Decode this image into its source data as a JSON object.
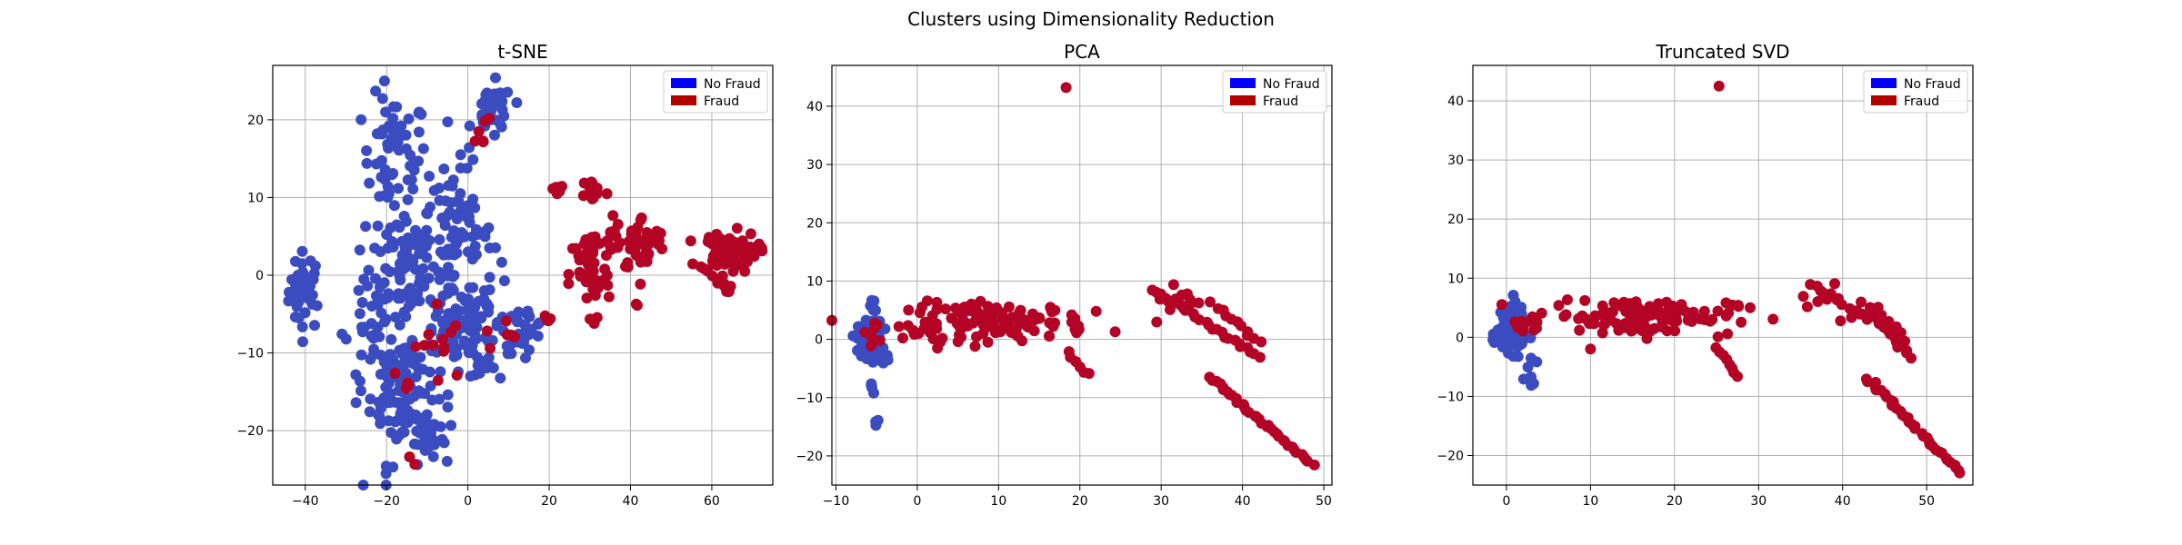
{
  "suptitle": "Clusters using Dimensionality Reduction",
  "colors": {
    "no_fraud": "#0000ff",
    "fraud": "#b00000",
    "no_fraud_point": "#3b4cc0",
    "fraud_point": "#b40426"
  },
  "chart_data": [
    {
      "type": "scatter",
      "title": "t-SNE",
      "xlim": [
        -48,
        75
      ],
      "ylim": [
        -27,
        27
      ],
      "xticks": [
        -40,
        -20,
        0,
        20,
        40,
        60
      ],
      "yticks": [
        -20,
        -10,
        0,
        10,
        20
      ],
      "grid": true,
      "legend": {
        "position": "top-right",
        "entries": [
          "No Fraud",
          "Fraud"
        ]
      },
      "series": [
        {
          "name": "No Fraud",
          "clusters": [
            {
              "cx": -40,
              "cy": -2,
              "sx": 2.0,
              "sy": 2.5,
              "n": 40
            },
            {
              "cx": -18,
              "cy": 15,
              "sx": 4.0,
              "sy": 4.0,
              "n": 60
            },
            {
              "cx": -16,
              "cy": 2,
              "sx": 4.0,
              "sy": 4.0,
              "n": 70
            },
            {
              "cx": -16,
              "cy": -14,
              "sx": 4.0,
              "sy": 5.0,
              "n": 110
            },
            {
              "cx": -3,
              "cy": 5,
              "sx": 4.5,
              "sy": 4.5,
              "n": 90
            },
            {
              "cx": -3,
              "cy": -8,
              "sx": 4.0,
              "sy": 3.0,
              "n": 50
            },
            {
              "cx": 6,
              "cy": 21,
              "sx": 2.5,
              "sy": 1.8,
              "n": 35
            },
            {
              "cx": 5,
              "cy": -6,
              "sx": 3.0,
              "sy": 4.0,
              "n": 40
            },
            {
              "cx": 14,
              "cy": -7,
              "sx": 2.5,
              "sy": 1.5,
              "n": 25
            },
            {
              "cx": -24,
              "cy": -8,
              "sx": 3.0,
              "sy": 5.0,
              "n": 35
            },
            {
              "cx": -10,
              "cy": -20,
              "sx": 2.5,
              "sy": 1.5,
              "n": 25
            }
          ]
        },
        {
          "name": "Fraud",
          "clusters": [
            {
              "cx": 30,
              "cy": 0,
              "sx": 2.5,
              "sy": 3.0,
              "n": 50
            },
            {
              "cx": 31,
              "cy": 11,
              "sx": 1.5,
              "sy": 0.8,
              "n": 15
            },
            {
              "cx": 43,
              "cy": 4,
              "sx": 3.0,
              "sy": 1.8,
              "n": 40
            },
            {
              "cx": 35,
              "cy": 5,
              "sx": 1.2,
              "sy": 1.5,
              "n": 10
            },
            {
              "cx": 64,
              "cy": 3,
              "sx": 3.5,
              "sy": 1.3,
              "n": 80
            },
            {
              "cx": 62,
              "cy": -1,
              "sx": 1.5,
              "sy": 0.6,
              "n": 10
            },
            {
              "cx": 22,
              "cy": 11,
              "sx": 0.6,
              "sy": 0.4,
              "n": 5
            },
            {
              "cx": 20,
              "cy": -6,
              "sx": 0.6,
              "sy": 0.4,
              "n": 4
            },
            {
              "cx": 3,
              "cy": 19,
              "sx": 1.0,
              "sy": 1.2,
              "n": 6
            },
            {
              "cx": -7,
              "cy": -9,
              "sx": 3.0,
              "sy": 3.0,
              "n": 12
            },
            {
              "cx": 8,
              "cy": -8,
              "sx": 2.0,
              "sy": 1.5,
              "n": 6
            },
            {
              "cx": -14,
              "cy": -24,
              "sx": 0.5,
              "sy": 0.5,
              "n": 2
            },
            {
              "cx": -16,
              "cy": -13,
              "sx": 1.0,
              "sy": 1.0,
              "n": 4
            },
            {
              "cx": 31,
              "cy": -6,
              "sx": 0.6,
              "sy": 0.6,
              "n": 2
            },
            {
              "cx": 42,
              "cy": -3.5,
              "sx": 0.5,
              "sy": 0.4,
              "n": 2
            }
          ]
        }
      ]
    },
    {
      "type": "scatter",
      "title": "PCA",
      "xlim": [
        -10.5,
        51
      ],
      "ylim": [
        -25,
        47
      ],
      "xticks": [
        -10,
        0,
        10,
        20,
        30,
        40,
        50
      ],
      "yticks": [
        -20,
        -10,
        0,
        10,
        20,
        30,
        40
      ],
      "grid": true,
      "legend": {
        "position": "top-right",
        "entries": [
          "No Fraud",
          "Fraud"
        ]
      },
      "series": [
        {
          "name": "No Fraud",
          "clusters": [
            {
              "cx": -5.8,
              "cy": 0,
              "sx": 0.7,
              "sy": 1.5,
              "n": 160
            },
            {
              "cx": -5.5,
              "cy": 6,
              "sx": 0.4,
              "sy": 1.2,
              "n": 8
            },
            {
              "cx": -5.5,
              "cy": -8,
              "sx": 0.4,
              "sy": 0.6,
              "n": 4
            },
            {
              "cx": -5.0,
              "cy": -13.8,
              "sx": 0.2,
              "sy": 0.3,
              "n": 3
            },
            {
              "cx": -3.8,
              "cy": -3.5,
              "sx": 0.5,
              "sy": 0.5,
              "n": 6
            }
          ]
        },
        {
          "name": "Fraud",
          "clusters": [
            {
              "cx": 10,
              "cy": 3,
              "sx": 5.5,
              "sy": 1.6,
              "n": 110
            },
            {
              "cx": 1.5,
              "cy": 1.2,
              "sx": 1.5,
              "sy": 1.0,
              "n": 10
            },
            {
              "cx": 32,
              "cy": 6.5,
              "sx": 2.0,
              "sy": 1.2,
              "n": 14
            },
            {
              "cx": -5,
              "cy": 1.5,
              "sx": 0.6,
              "sy": 1.2,
              "n": 8
            }
          ],
          "lines": [
            {
              "x0": 29,
              "y0": 8.5,
              "x1": 42,
              "y1": -3,
              "n": 26
            },
            {
              "x0": 37,
              "y0": 5.5,
              "x1": 42,
              "y1": -0.5,
              "n": 10
            },
            {
              "x0": 36,
              "y0": -6.5,
              "x1": 48.5,
              "y1": -21.5,
              "n": 36
            },
            {
              "x0": 18.5,
              "y0": -2.5,
              "x1": 21,
              "y1": -6,
              "n": 6
            }
          ],
          "points": [
            [
              18.3,
              43.2
            ],
            [
              22,
              4.8
            ],
            [
              19,
              4.2
            ]
          ]
        }
      ]
    },
    {
      "type": "scatter",
      "title": "Truncated SVD",
      "xlim": [
        -4,
        55.5
      ],
      "ylim": [
        -25,
        46
      ],
      "xticks": [
        0,
        10,
        20,
        30,
        40,
        50
      ],
      "yticks": [
        -20,
        -10,
        0,
        10,
        20,
        30,
        40
      ],
      "grid": true,
      "legend": {
        "position": "top-right",
        "entries": [
          "No Fraud",
          "Fraud"
        ]
      },
      "series": [
        {
          "name": "No Fraud",
          "clusters": [
            {
              "cx": 0.5,
              "cy": 0.5,
              "sx": 0.8,
              "sy": 1.5,
              "n": 150
            },
            {
              "cx": 1.0,
              "cy": 4.5,
              "sx": 0.4,
              "sy": 1.0,
              "n": 8
            },
            {
              "cx": 2.5,
              "cy": -5,
              "sx": 0.5,
              "sy": 1.0,
              "n": 6
            },
            {
              "cx": 3.0,
              "cy": -8,
              "sx": 0.2,
              "sy": 0.2,
              "n": 2
            }
          ]
        },
        {
          "name": "Fraud",
          "clusters": [
            {
              "cx": 16,
              "cy": 3.5,
              "sx": 5.5,
              "sy": 1.6,
              "n": 110
            },
            {
              "cx": 2.5,
              "cy": 2.5,
              "sx": 1.5,
              "sy": 1.2,
              "n": 10
            },
            {
              "cx": 38,
              "cy": 7,
              "sx": 1.5,
              "sy": 1.0,
              "n": 10
            }
          ],
          "lines": [
            {
              "x0": 36,
              "y0": 9,
              "x1": 43,
              "y1": 3,
              "n": 10
            },
            {
              "x0": 43,
              "y0": 5,
              "x1": 48,
              "y1": -3.5,
              "n": 14
            },
            {
              "x0": 44,
              "y0": 5,
              "x1": 47.5,
              "y1": -0.5,
              "n": 6
            },
            {
              "x0": 43,
              "y0": -7,
              "x1": 54,
              "y1": -23,
              "n": 36
            },
            {
              "x0": 25,
              "y0": -2,
              "x1": 27.5,
              "y1": -6.5,
              "n": 8
            },
            {
              "x0": 40,
              "y0": 3,
              "x1": 42,
              "y1": 4,
              "n": 3
            }
          ],
          "points": [
            [
              25.3,
              42.5
            ],
            [
              10,
              -2
            ],
            [
              29,
              5
            ]
          ]
        }
      ]
    }
  ]
}
